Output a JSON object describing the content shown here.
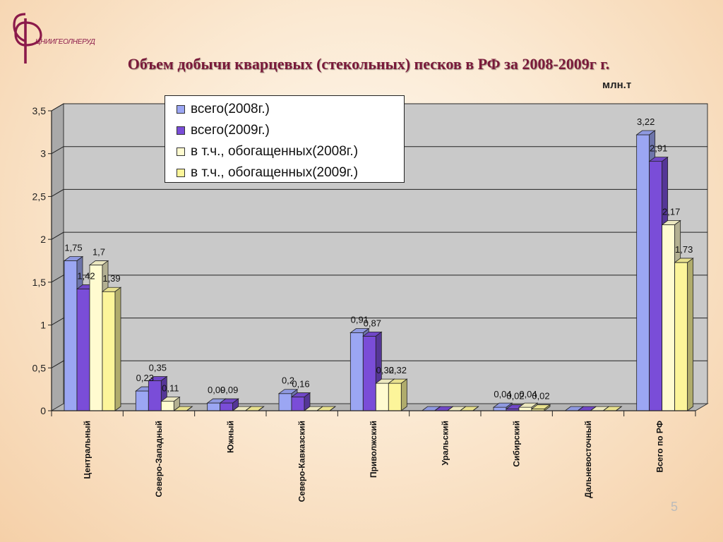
{
  "logo": {
    "text": "ЦНИИГЕОЛНЕРУД",
    "icon": "ф-emblem-icon",
    "color": "#8b1a4a"
  },
  "page": {
    "title": "Объем добычи кварцевых (стекольных) песков в РФ за 2008-2009г г.",
    "unit": "млн.т",
    "number": "5"
  },
  "colors": {
    "title": "#7a1a3a",
    "plot_bg": "#c9c9c9",
    "wall_side": "#a9a9a9",
    "floor": "#b5b5b5"
  },
  "chart_data": {
    "type": "bar",
    "style": "3d-clustered-column",
    "title": "Объем добычи кварцевых (стекольных) песков в РФ за 2008-2009г г.",
    "ylabel": "млн.т",
    "ylim": [
      0,
      3.5
    ],
    "yticks": [
      "0",
      "0,5",
      "1",
      "1,5",
      "2",
      "2,5",
      "3",
      "3,5"
    ],
    "grid": true,
    "legend_position": "top-left",
    "categories": [
      "Центральный",
      "Северо-Западный",
      "Южный",
      "Северо-Кавказский",
      "Приволжский",
      "Уральский",
      "Сибирский",
      "Дальневосточный",
      "Всего по РФ"
    ],
    "series": [
      {
        "name": "всего(2008г.)",
        "color": "#9ba6f3",
        "values": [
          1.75,
          0.23,
          0.09,
          0.2,
          0.91,
          0,
          0.04,
          0,
          3.22
        ],
        "labels": [
          "1,75",
          "0,23",
          "0,09",
          "0,2",
          "0,91",
          "",
          "0,04",
          "",
          "3,22"
        ]
      },
      {
        "name": "всего(2009г.)",
        "color": "#7a4dd8",
        "values": [
          1.42,
          0.35,
          0.09,
          0.16,
          0.87,
          0,
          0.02,
          0,
          2.91
        ],
        "labels": [
          "1,42",
          "0,35",
          "0,09",
          "0,16",
          "0,87",
          "",
          "0,02",
          "",
          "2,91"
        ]
      },
      {
        "name": "в т.ч., обогащенных(2008г.)",
        "color": "#fffbd0",
        "values": [
          1.7,
          0.11,
          0,
          0,
          0.32,
          0,
          0.04,
          0,
          2.17
        ],
        "labels": [
          "1,7",
          "0,11",
          "",
          "",
          "0,32",
          "",
          "0,04",
          "",
          "2,17"
        ]
      },
      {
        "name": "в т.ч., обогащенных(2009г.)",
        "color": "#fcf59a",
        "values": [
          1.39,
          0,
          0,
          0,
          0.32,
          0,
          0.02,
          0,
          1.73
        ],
        "labels": [
          "1,39",
          "",
          "",
          "",
          "0,32",
          "",
          "0,02",
          "",
          "1,73"
        ]
      }
    ]
  }
}
